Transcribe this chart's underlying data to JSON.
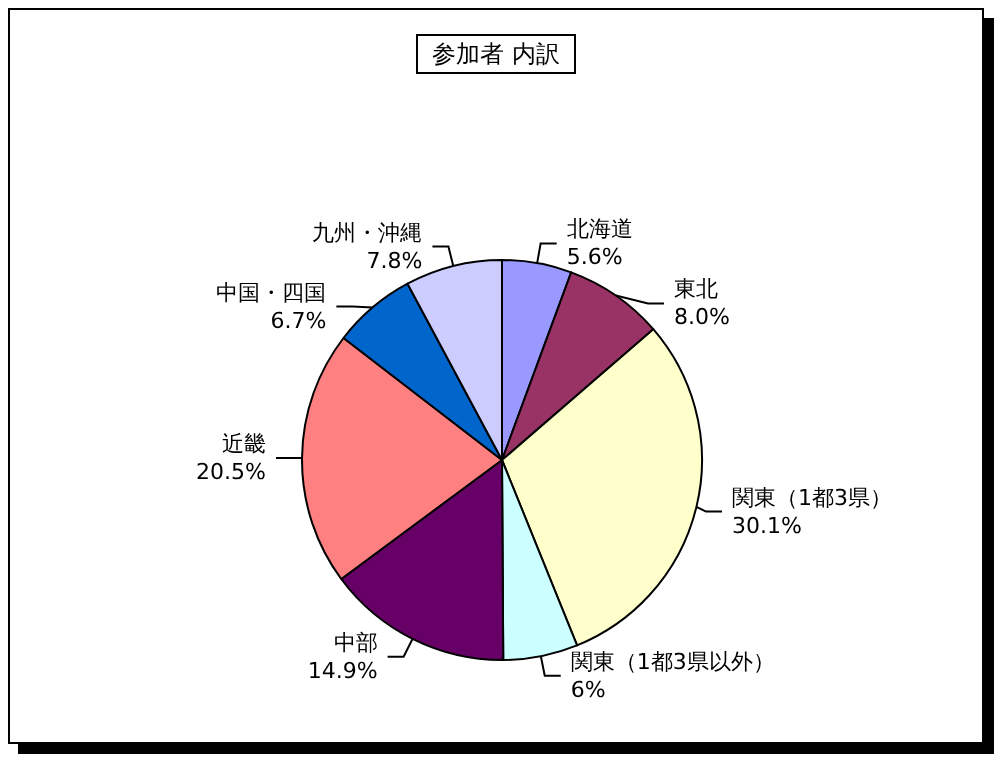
{
  "chart_data": {
    "type": "pie",
    "title": "参加者 内訳",
    "categories": [
      "北海道",
      "東北",
      "関東（1都3県）",
      "関東（1都3県以外）",
      "中部",
      "近畿",
      "中国・四国",
      "九州・沖縄"
    ],
    "values": [
      5.6,
      8.0,
      30.1,
      6,
      14.9,
      20.5,
      6.7,
      7.8
    ],
    "value_labels": [
      "5.6%",
      "8.0%",
      "30.1%",
      "6%",
      "14.9%",
      "20.5%",
      "6.7%",
      "7.8%"
    ],
    "colors": [
      "#9999ff",
      "#993366",
      "#ffffcc",
      "#ccffff",
      "#660066",
      "#ff8080",
      "#0066cc",
      "#ccccff"
    ],
    "legend": false
  }
}
